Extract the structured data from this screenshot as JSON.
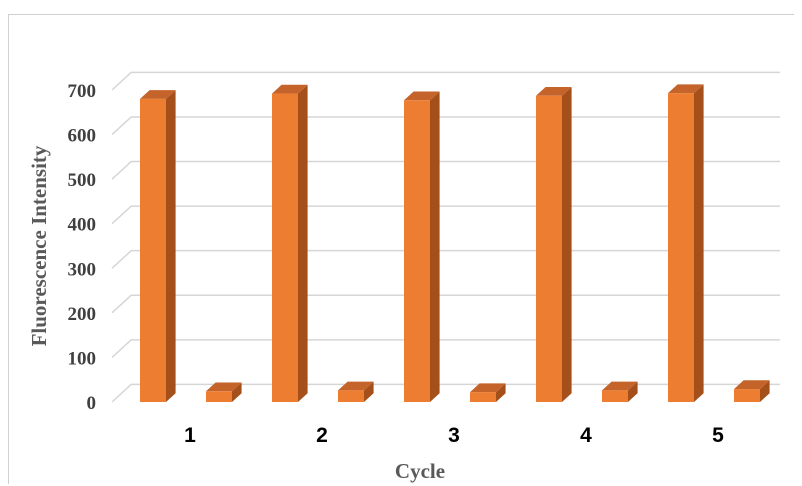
{
  "chart_data": {
    "type": "bar",
    "style": "3d-clustered-column",
    "categories": [
      "1",
      "2",
      "3",
      "4",
      "5"
    ],
    "series": [
      {
        "values": [
          680,
          692,
          677,
          687,
          693
        ]
      },
      {
        "values": [
          24,
          26,
          22,
          26,
          29
        ]
      }
    ],
    "xlabel": "Cycle",
    "ylabel": "Fluorescence Intensity",
    "ylim": [
      0,
      700
    ],
    "yticks": [
      "0",
      "100",
      "200",
      "300",
      "400",
      "500",
      "600",
      "700"
    ],
    "grid": true,
    "legend": "none",
    "colors": {
      "bar_front": "#ED7D31",
      "bar_side": "#A5501B",
      "bar_top": "#C4632A"
    }
  }
}
